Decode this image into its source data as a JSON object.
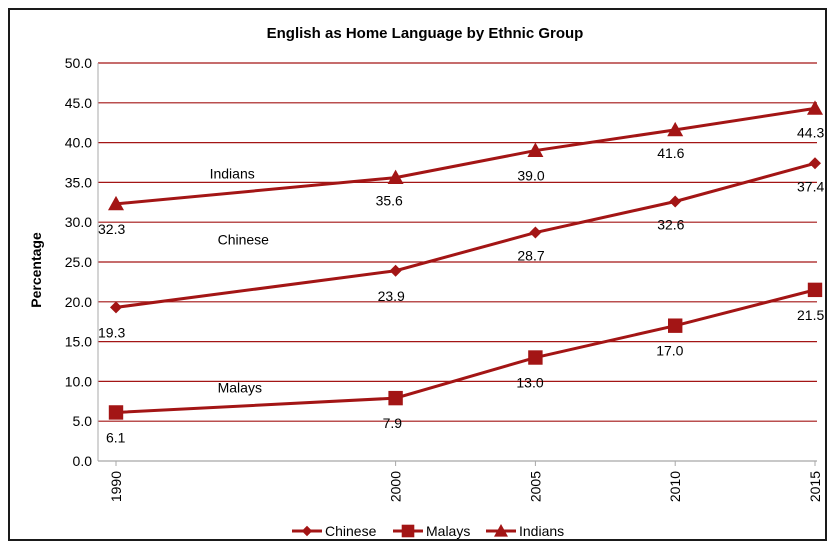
{
  "chart_data": {
    "type": "line",
    "title": "English as Home Language by Ethnic Group",
    "xlabel": "",
    "ylabel": "Percentage",
    "x": [
      "1990",
      "2000",
      "2005",
      "2010",
      "2015"
    ],
    "x_values": [
      1990,
      2000,
      2005,
      2010,
      2015
    ],
    "ylim": [
      0,
      50
    ],
    "yticks": [
      "0.0",
      "5.0",
      "10.0",
      "15.0",
      "20.0",
      "25.0",
      "30.0",
      "35.0",
      "40.0",
      "45.0",
      "50.0"
    ],
    "grid": true,
    "legend": "bottom",
    "line_color": "#a31515",
    "series": [
      {
        "name": "Chinese",
        "marker": "diamond",
        "values": [
          19.3,
          23.9,
          28.7,
          32.6,
          37.4
        ],
        "labels": [
          "19.3",
          "23.9",
          "28.7",
          "32.6",
          "37.4"
        ],
        "inline_label": "Chinese"
      },
      {
        "name": "Malays",
        "marker": "square",
        "values": [
          6.1,
          7.9,
          13.0,
          17.0,
          21.5
        ],
        "labels": [
          "6.1",
          "7.9",
          "13.0",
          "17.0",
          "21.5"
        ],
        "inline_label": "Malays"
      },
      {
        "name": "Indians",
        "marker": "triangle",
        "values": [
          32.3,
          35.6,
          39.0,
          41.6,
          44.3
        ],
        "labels": [
          "32.3",
          "35.6",
          "39.0",
          "41.6",
          "44.3"
        ],
        "inline_label": "Indians"
      }
    ]
  }
}
